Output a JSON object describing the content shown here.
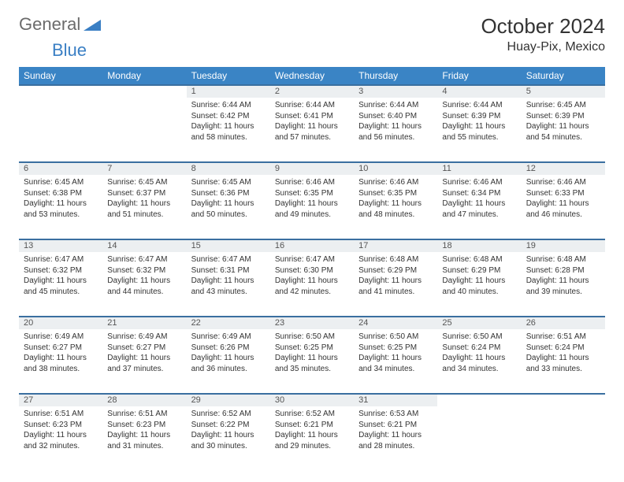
{
  "logo": {
    "part1": "General",
    "part2": "Blue"
  },
  "title": "October 2024",
  "location": "Huay-Pix, Mexico",
  "colors": {
    "header_bg": "#3a84c5",
    "header_text": "#ffffff",
    "daynum_bg": "#eceff1",
    "row_border": "#3a6fa0",
    "logo_gray": "#6b6b6b",
    "logo_blue": "#3a7fc4",
    "body_text": "#333333",
    "background": "#ffffff"
  },
  "day_headers": [
    "Sunday",
    "Monday",
    "Tuesday",
    "Wednesday",
    "Thursday",
    "Friday",
    "Saturday"
  ],
  "weeks": [
    {
      "nums": [
        "",
        "",
        "1",
        "2",
        "3",
        "4",
        "5"
      ],
      "cells": [
        null,
        null,
        {
          "sunrise": "6:44 AM",
          "sunset": "6:42 PM",
          "daylight": "11 hours and 58 minutes."
        },
        {
          "sunrise": "6:44 AM",
          "sunset": "6:41 PM",
          "daylight": "11 hours and 57 minutes."
        },
        {
          "sunrise": "6:44 AM",
          "sunset": "6:40 PM",
          "daylight": "11 hours and 56 minutes."
        },
        {
          "sunrise": "6:44 AM",
          "sunset": "6:39 PM",
          "daylight": "11 hours and 55 minutes."
        },
        {
          "sunrise": "6:45 AM",
          "sunset": "6:39 PM",
          "daylight": "11 hours and 54 minutes."
        }
      ]
    },
    {
      "nums": [
        "6",
        "7",
        "8",
        "9",
        "10",
        "11",
        "12"
      ],
      "cells": [
        {
          "sunrise": "6:45 AM",
          "sunset": "6:38 PM",
          "daylight": "11 hours and 53 minutes."
        },
        {
          "sunrise": "6:45 AM",
          "sunset": "6:37 PM",
          "daylight": "11 hours and 51 minutes."
        },
        {
          "sunrise": "6:45 AM",
          "sunset": "6:36 PM",
          "daylight": "11 hours and 50 minutes."
        },
        {
          "sunrise": "6:46 AM",
          "sunset": "6:35 PM",
          "daylight": "11 hours and 49 minutes."
        },
        {
          "sunrise": "6:46 AM",
          "sunset": "6:35 PM",
          "daylight": "11 hours and 48 minutes."
        },
        {
          "sunrise": "6:46 AM",
          "sunset": "6:34 PM",
          "daylight": "11 hours and 47 minutes."
        },
        {
          "sunrise": "6:46 AM",
          "sunset": "6:33 PM",
          "daylight": "11 hours and 46 minutes."
        }
      ]
    },
    {
      "nums": [
        "13",
        "14",
        "15",
        "16",
        "17",
        "18",
        "19"
      ],
      "cells": [
        {
          "sunrise": "6:47 AM",
          "sunset": "6:32 PM",
          "daylight": "11 hours and 45 minutes."
        },
        {
          "sunrise": "6:47 AM",
          "sunset": "6:32 PM",
          "daylight": "11 hours and 44 minutes."
        },
        {
          "sunrise": "6:47 AM",
          "sunset": "6:31 PM",
          "daylight": "11 hours and 43 minutes."
        },
        {
          "sunrise": "6:47 AM",
          "sunset": "6:30 PM",
          "daylight": "11 hours and 42 minutes."
        },
        {
          "sunrise": "6:48 AM",
          "sunset": "6:29 PM",
          "daylight": "11 hours and 41 minutes."
        },
        {
          "sunrise": "6:48 AM",
          "sunset": "6:29 PM",
          "daylight": "11 hours and 40 minutes."
        },
        {
          "sunrise": "6:48 AM",
          "sunset": "6:28 PM",
          "daylight": "11 hours and 39 minutes."
        }
      ]
    },
    {
      "nums": [
        "20",
        "21",
        "22",
        "23",
        "24",
        "25",
        "26"
      ],
      "cells": [
        {
          "sunrise": "6:49 AM",
          "sunset": "6:27 PM",
          "daylight": "11 hours and 38 minutes."
        },
        {
          "sunrise": "6:49 AM",
          "sunset": "6:27 PM",
          "daylight": "11 hours and 37 minutes."
        },
        {
          "sunrise": "6:49 AM",
          "sunset": "6:26 PM",
          "daylight": "11 hours and 36 minutes."
        },
        {
          "sunrise": "6:50 AM",
          "sunset": "6:25 PM",
          "daylight": "11 hours and 35 minutes."
        },
        {
          "sunrise": "6:50 AM",
          "sunset": "6:25 PM",
          "daylight": "11 hours and 34 minutes."
        },
        {
          "sunrise": "6:50 AM",
          "sunset": "6:24 PM",
          "daylight": "11 hours and 34 minutes."
        },
        {
          "sunrise": "6:51 AM",
          "sunset": "6:24 PM",
          "daylight": "11 hours and 33 minutes."
        }
      ]
    },
    {
      "nums": [
        "27",
        "28",
        "29",
        "30",
        "31",
        "",
        ""
      ],
      "cells": [
        {
          "sunrise": "6:51 AM",
          "sunset": "6:23 PM",
          "daylight": "11 hours and 32 minutes."
        },
        {
          "sunrise": "6:51 AM",
          "sunset": "6:23 PM",
          "daylight": "11 hours and 31 minutes."
        },
        {
          "sunrise": "6:52 AM",
          "sunset": "6:22 PM",
          "daylight": "11 hours and 30 minutes."
        },
        {
          "sunrise": "6:52 AM",
          "sunset": "6:21 PM",
          "daylight": "11 hours and 29 minutes."
        },
        {
          "sunrise": "6:53 AM",
          "sunset": "6:21 PM",
          "daylight": "11 hours and 28 minutes."
        },
        null,
        null
      ]
    }
  ],
  "labels": {
    "sunrise": "Sunrise: ",
    "sunset": "Sunset: ",
    "daylight": "Daylight: "
  }
}
